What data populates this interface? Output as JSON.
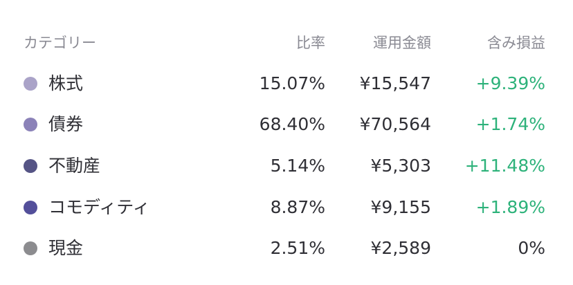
{
  "header": {
    "category": "カテゴリー",
    "ratio": "比率",
    "amount": "運用金額",
    "gain": "含み損益"
  },
  "rows": [
    {
      "name": "株式",
      "ratio": "15.07%",
      "amount": "¥15,547",
      "gain": "+9.39%",
      "color": "#aaa3c8"
    },
    {
      "name": "債券",
      "ratio": "68.40%",
      "amount": "¥70,564",
      "gain": "+1.74%",
      "color": "#8b82b8"
    },
    {
      "name": "不動産",
      "ratio": "5.14%",
      "amount": "¥5,303",
      "gain": "+11.48%",
      "color": "#555485"
    },
    {
      "name": "コモディティ",
      "ratio": "8.87%",
      "amount": "¥9,155",
      "gain": "+1.89%",
      "color": "#534f9a"
    },
    {
      "name": "現金",
      "ratio": "2.51%",
      "amount": "¥2,589",
      "gain": "0%",
      "color": "#8c8c8f"
    }
  ]
}
